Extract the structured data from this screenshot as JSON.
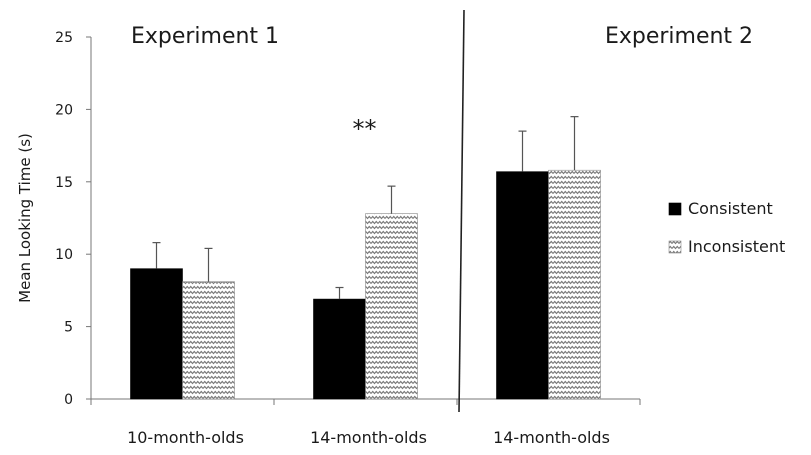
{
  "chart_data": {
    "type": "bar",
    "ylabel": "Mean Looking Time (s)",
    "ylim": [
      0,
      25
    ],
    "yticks": [
      0,
      5,
      10,
      15,
      20,
      25
    ],
    "categories": [
      "10-month-olds",
      "14-month-olds",
      "14-month-olds"
    ],
    "series": [
      {
        "name": "Consistent",
        "color": "#000000",
        "pattern": "solid",
        "values": [
          9.0,
          6.9,
          15.7
        ],
        "errors": [
          1.8,
          0.8,
          2.8
        ]
      },
      {
        "name": "Inconsistent",
        "color": "#777777",
        "pattern": "zigzag",
        "values": [
          8.1,
          12.8,
          15.8
        ],
        "errors": [
          2.3,
          1.9,
          3.7
        ]
      }
    ],
    "panels": [
      {
        "label": "Experiment 1",
        "categories": [
          0,
          1
        ]
      },
      {
        "label": "Experiment 2",
        "categories": [
          2
        ]
      }
    ],
    "annotations": [
      {
        "text": "**",
        "category": 1
      }
    ],
    "legend": {
      "position": "right",
      "entries": [
        "Consistent",
        "Inconsistent"
      ]
    },
    "grid": false
  }
}
